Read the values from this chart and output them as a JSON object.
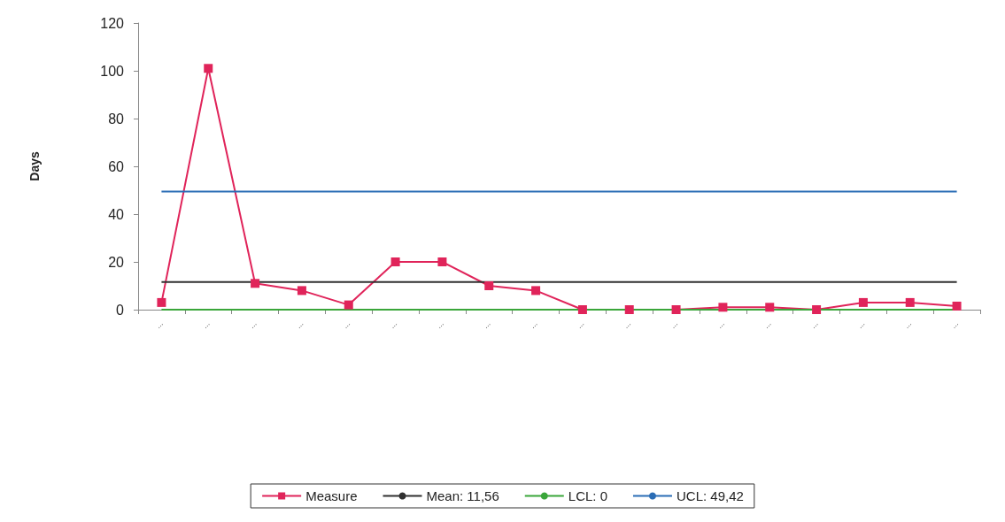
{
  "chart_data": {
    "type": "line",
    "ylabel": "Days",
    "categories": [
      "...",
      "...",
      "...",
      "...",
      "...",
      "...",
      "...",
      "...",
      "...",
      "...",
      "...",
      "...",
      "...",
      "...",
      "...",
      "...",
      "...",
      "..."
    ],
    "series": [
      {
        "name": "Measure",
        "color": "#e0245a",
        "marker": "square",
        "values": [
          3,
          101,
          11,
          8,
          2,
          20,
          20,
          10,
          8,
          0,
          0,
          0,
          1,
          1,
          0,
          3,
          3,
          1.5
        ]
      },
      {
        "name": "Mean: 11,56",
        "color": "#303030",
        "marker": "none",
        "values": [
          11.56,
          11.56,
          11.56,
          11.56,
          11.56,
          11.56,
          11.56,
          11.56,
          11.56,
          11.56,
          11.56,
          11.56,
          11.56,
          11.56,
          11.56,
          11.56,
          11.56,
          11.56
        ]
      },
      {
        "name": "LCL: 0",
        "color": "#3aa63a",
        "marker": "none",
        "values": [
          0,
          0,
          0,
          0,
          0,
          0,
          0,
          0,
          0,
          0,
          0,
          0,
          0,
          0,
          0,
          0,
          0,
          0
        ]
      },
      {
        "name": "UCL: 49,42",
        "color": "#2a6db5",
        "marker": "none",
        "values": [
          49.42,
          49.42,
          49.42,
          49.42,
          49.42,
          49.42,
          49.42,
          49.42,
          49.42,
          49.42,
          49.42,
          49.42,
          49.42,
          49.42,
          49.42,
          49.42,
          49.42,
          49.42
        ]
      }
    ],
    "ylim": [
      0,
      120
    ],
    "yticks": [
      0,
      20,
      40,
      60,
      80,
      100,
      120
    ],
    "grid": false,
    "legend": "bottom"
  }
}
